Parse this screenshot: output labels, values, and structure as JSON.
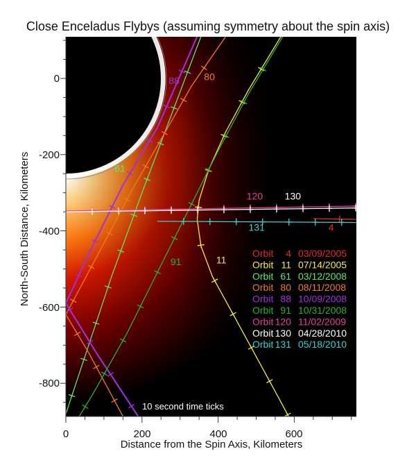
{
  "title": "Close Enceladus Flybys (assuming symmetry about the spin axis)",
  "chart_data": {
    "type": "line",
    "title": "Close Enceladus Flybys (assuming symmetry about the spin axis)",
    "xlabel": "Distance from the Spin Axis, Kilometers",
    "ylabel": "North-South Distance, Kilometers",
    "xlim": [
      0,
      763
    ],
    "ylim": [
      -887,
      110
    ],
    "x_ticks": [
      0,
      200,
      400,
      600
    ],
    "y_ticks": [
      0,
      -200,
      -400,
      -600,
      -800
    ],
    "grid": false,
    "annotation": "10 second time ticks",
    "background": "Enceladus limb with south-polar plume brightness (black-red-orange-white colormap)",
    "enceladus_radius_km": 252,
    "series": [
      {
        "name": "Orbit 4",
        "orbit": "4",
        "date": "03/09/2005",
        "color": "#e8282a",
        "label_pos": [
          690,
          -400
        ],
        "points": [
          [
            650,
            -368
          ],
          [
            763,
            -370
          ]
        ]
      },
      {
        "name": "Orbit 11",
        "orbit": "11",
        "date": "07/14/2005",
        "color": "#f2ee3a",
        "label_pos": [
          395,
          -485
        ],
        "points": [
          [
            565,
            110
          ],
          [
            480,
            -30
          ],
          [
            420,
            -140
          ],
          [
            375,
            -240
          ],
          [
            350,
            -320
          ],
          [
            345,
            -370
          ],
          [
            355,
            -440
          ],
          [
            385,
            -520
          ],
          [
            440,
            -620
          ],
          [
            500,
            -730
          ],
          [
            560,
            -840
          ],
          [
            585,
            -887
          ]
        ]
      },
      {
        "name": "Orbit 61",
        "orbit": "61",
        "date": "03/12/2008",
        "color": "#5de86a",
        "label_pos": [
          128,
          -245
        ],
        "points": [
          [
            355,
            110
          ],
          [
            200,
            -300
          ],
          [
            120,
            -520
          ],
          [
            0,
            -880
          ]
        ]
      },
      {
        "name": "Orbit 80",
        "orbit": "80",
        "date": "08/11/2008",
        "color": "#f07a2a",
        "label_pos": [
          363,
          -5
        ],
        "points": [
          [
            420,
            110
          ],
          [
            330,
            -20
          ],
          [
            170,
            -300
          ],
          [
            80,
            -470
          ],
          [
            0,
            -620
          ],
          [
            60,
            -720
          ],
          [
            150,
            -887
          ]
        ]
      },
      {
        "name": "Orbit 88",
        "orbit": "88",
        "date": "10/09/2008",
        "color": "#a030e0",
        "label_pos": [
          270,
          -15
        ],
        "points": [
          [
            345,
            110
          ],
          [
            240,
            -130
          ],
          [
            150,
            -280
          ],
          [
            70,
            -440
          ],
          [
            0,
            -590
          ],
          [
            80,
            -720
          ],
          [
            190,
            -887
          ]
        ]
      },
      {
        "name": "Orbit 91",
        "orbit": "91",
        "date": "10/31/2008",
        "color": "#2fb02f",
        "label_pos": [
          275,
          -490
        ],
        "points": [
          [
            570,
            110
          ],
          [
            480,
            -40
          ],
          [
            400,
            -190
          ],
          [
            330,
            -330
          ],
          [
            250,
            -490
          ],
          [
            160,
            -670
          ],
          [
            70,
            -830
          ],
          [
            35,
            -887
          ]
        ]
      },
      {
        "name": "Orbit 120",
        "orbit": "120",
        "date": "11/02/2009",
        "color": "#e8409a",
        "label_pos": [
          475,
          -318
        ],
        "points": [
          [
            0,
            -348
          ],
          [
            763,
            -335
          ]
        ]
      },
      {
        "name": "Orbit 130",
        "orbit": "130",
        "date": "04/28/2010",
        "color": "#ffffff",
        "label_pos": [
          575,
          -318
        ],
        "points": [
          [
            0,
            -350
          ],
          [
            763,
            -340
          ]
        ]
      },
      {
        "name": "Orbit 131",
        "orbit": "131",
        "date": "05/18/2010",
        "color": "#35d3d3",
        "label_pos": [
          480,
          -400
        ],
        "points": [
          [
            240,
            -375
          ],
          [
            763,
            -378
          ]
        ]
      }
    ]
  },
  "legend": {
    "position": "lower-right inside plot",
    "entries": [
      {
        "orbit_word": "Orbit",
        "orbit": "4",
        "date": "03/09/2005",
        "color": "#e8282a"
      },
      {
        "orbit_word": "Orbit",
        "orbit": "11",
        "date": "07/14/2005",
        "color": "#f2ee3a"
      },
      {
        "orbit_word": "Orbit",
        "orbit": "61",
        "date": "03/12/2008",
        "color": "#5de86a"
      },
      {
        "orbit_word": "Orbit",
        "orbit": "80",
        "date": "08/11/2008",
        "color": "#f07a2a"
      },
      {
        "orbit_word": "Orbit",
        "orbit": "88",
        "date": "10/09/2008",
        "color": "#a030e0"
      },
      {
        "orbit_word": "Orbit",
        "orbit": "91",
        "date": "10/31/2008",
        "color": "#2fb02f"
      },
      {
        "orbit_word": "Orbit",
        "orbit": "120",
        "date": "11/02/2009",
        "color": "#e8409a"
      },
      {
        "orbit_word": "Orbit",
        "orbit": "130",
        "date": "04/28/2010",
        "color": "#ffffff"
      },
      {
        "orbit_word": "Orbit",
        "orbit": "131",
        "date": "05/18/2010",
        "color": "#35d3d3"
      }
    ]
  },
  "axes": {
    "x_tick_labels": [
      "0",
      "200",
      "400",
      "600"
    ],
    "y_tick_labels": [
      "0",
      "-200",
      "-400",
      "-600",
      "-800"
    ],
    "xlabel": "Distance from the Spin Axis, Kilometers",
    "ylabel": "North-South Distance, Kilometers"
  },
  "note": "10 second time ticks",
  "colors": {
    "plot_bg": "#000000",
    "plume_dark": "#6a0000",
    "plume_mid": "#d01a00",
    "plume_bright": "#ff9a20",
    "limb": "#ffffff"
  }
}
